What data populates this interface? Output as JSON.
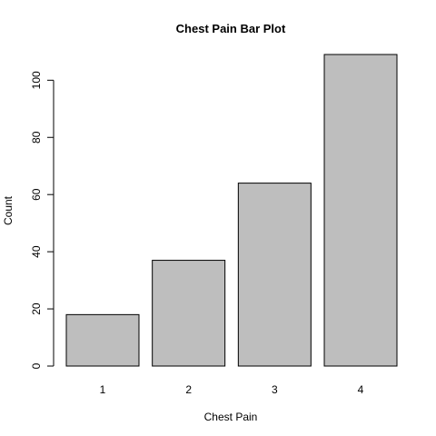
{
  "chart_data": {
    "type": "bar",
    "title": "Chest Pain Bar Plot",
    "xlabel": "Chest Pain",
    "ylabel": "Count",
    "categories": [
      "1",
      "2",
      "3",
      "4"
    ],
    "values": [
      18,
      37,
      64,
      109
    ],
    "ylim": [
      0,
      109
    ],
    "yticks": [
      0,
      20,
      40,
      60,
      80,
      100
    ],
    "colors": {
      "bar_fill": "#bebebe",
      "bar_stroke": "#000000"
    },
    "grid": false,
    "legend": "none"
  }
}
